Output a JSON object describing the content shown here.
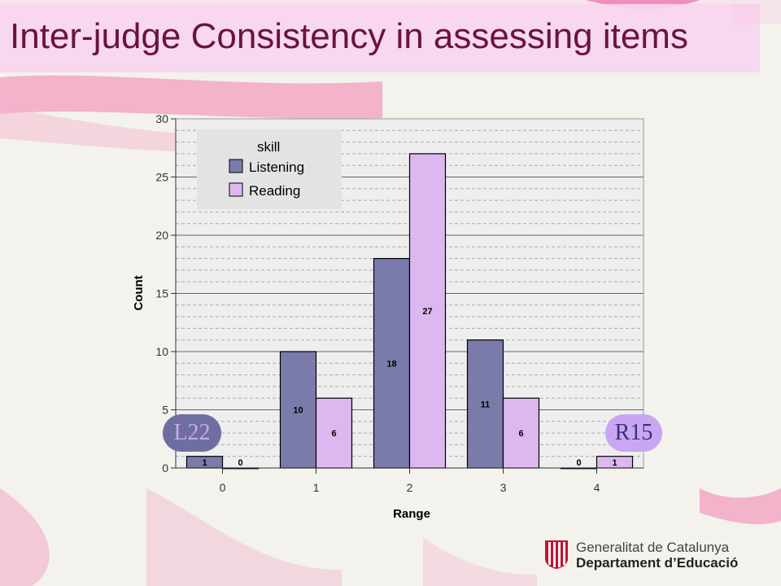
{
  "slide": {
    "title": "Inter-judge Consistency in assessing items",
    "callouts": {
      "left": "L22",
      "right": "R15"
    },
    "logo": {
      "line1": "Generalitat de Catalunya",
      "line2": "Departament d’Educació"
    }
  },
  "colors": {
    "listening": "#7b7bab",
    "reading": "#dcb7f0",
    "title": "#6a1340"
  },
  "chart_data": {
    "type": "bar",
    "categories": [
      "0",
      "1",
      "2",
      "3",
      "4"
    ],
    "series": [
      {
        "name": "Listening",
        "values": [
          1,
          10,
          18,
          11,
          0
        ]
      },
      {
        "name": "Reading",
        "values": [
          0,
          6,
          27,
          6,
          1
        ]
      }
    ],
    "xlabel": "Range",
    "ylabel": "Count",
    "ylim": [
      0,
      30
    ],
    "yticks": [
      "0",
      "5",
      "10",
      "15",
      "20",
      "25",
      "30"
    ],
    "legend_title": "skill",
    "legend_position": "top-left",
    "grid": true
  }
}
